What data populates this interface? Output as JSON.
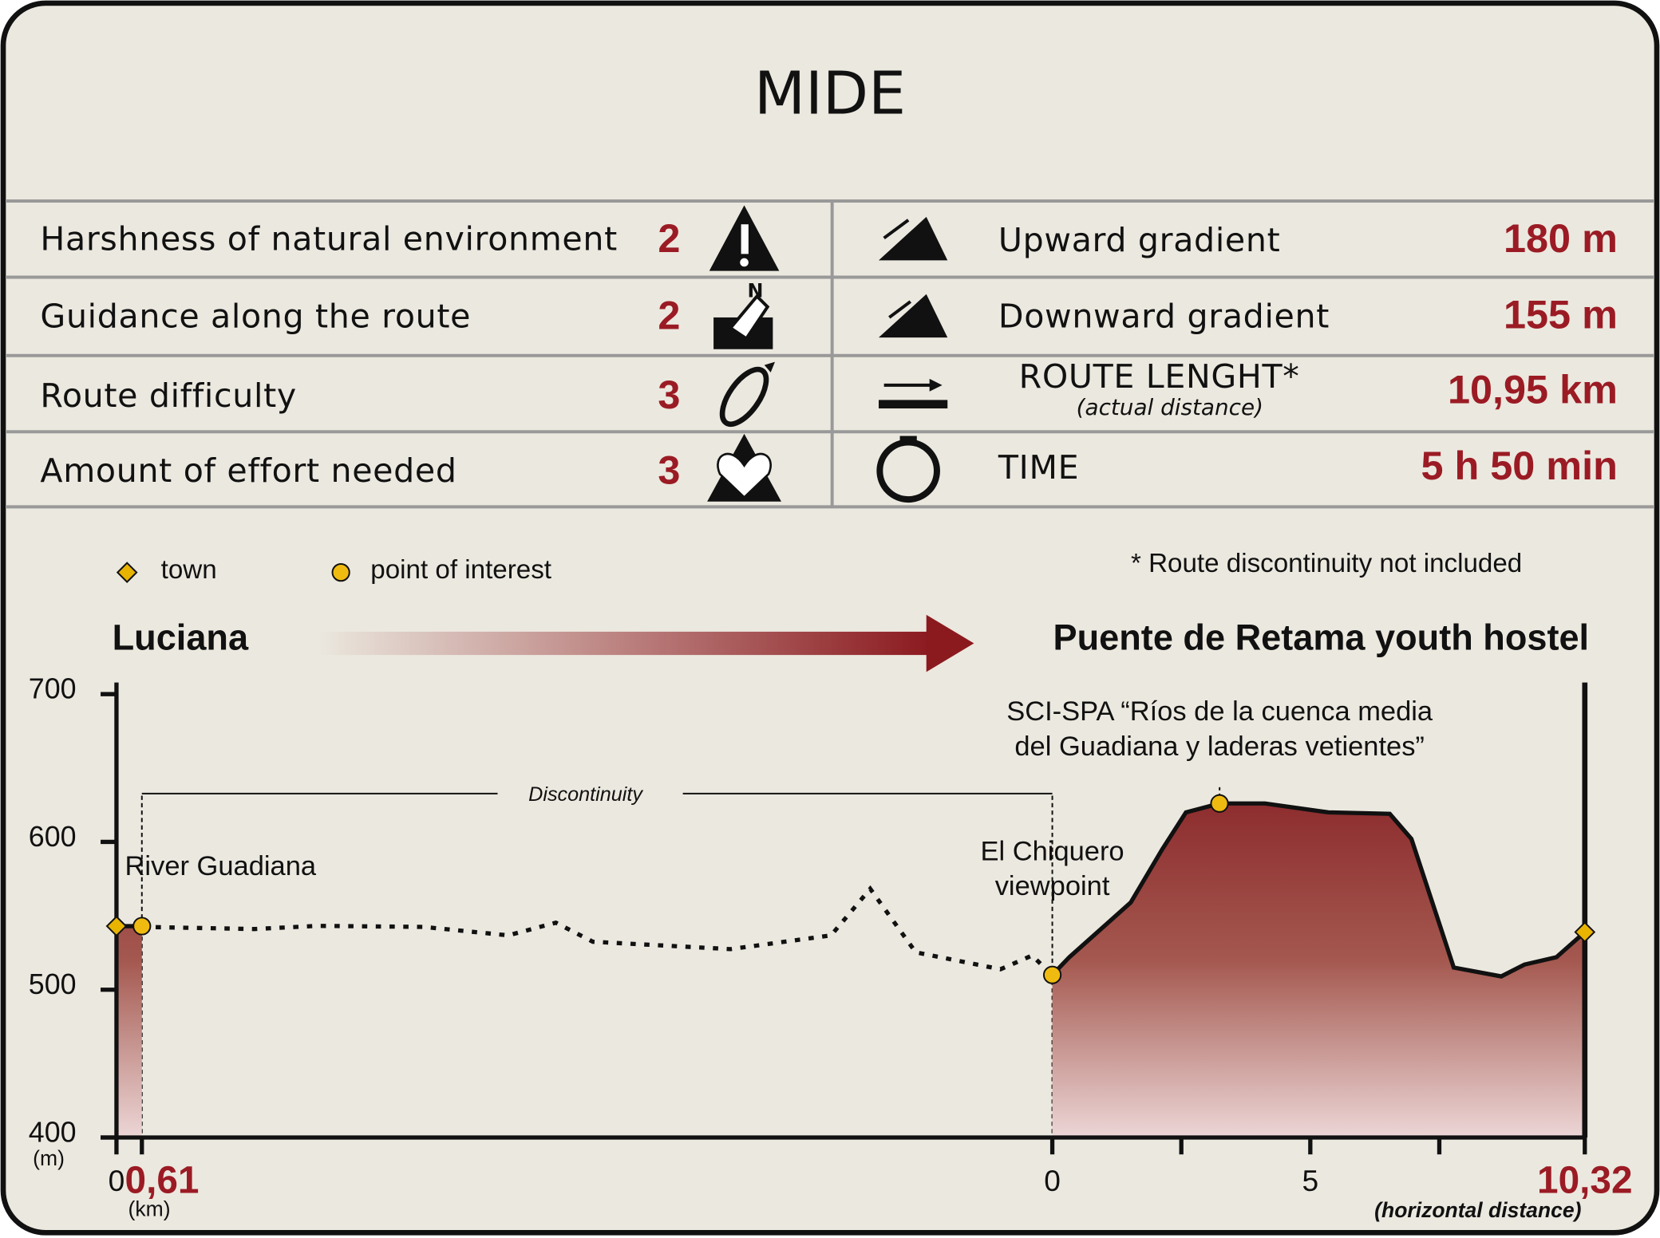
{
  "title": "MIDE",
  "mide": {
    "left": [
      {
        "label": "Harshness of natural environment",
        "value": 2
      },
      {
        "label": "Guidance along the route",
        "value": 2
      },
      {
        "label": "Route difficulty",
        "value": 3
      },
      {
        "label": "Amount of effort needed",
        "value": 3
      }
    ],
    "right": [
      {
        "label": "Upward gradient",
        "value": "180 m"
      },
      {
        "label": "Downward gradient",
        "value": "155 m"
      },
      {
        "label": "ROUTE LENGHT*",
        "note": "(actual distance)",
        "value": "10,95 km"
      },
      {
        "label": "TIME",
        "value": "5 h 50 min"
      }
    ]
  },
  "chart_data": {
    "type": "area",
    "start": "Luciana",
    "end": "Puente de Retama youth hostel",
    "note": "* Route discontinuity not included",
    "legend": [
      "town",
      "point of interest"
    ],
    "town_color": "#e8b400",
    "point_color": "#f0bb10",
    "color": "#8b1a1f",
    "ylabel": "(m)",
    "xlabel": "(km)",
    "xlabel2": "(horizontal distance)",
    "ylim": [
      400,
      700
    ],
    "yticks": [
      400,
      500,
      600,
      700
    ],
    "discontinuity_label": "Discontinuity",
    "annotations": [
      {
        "lines": [
          "River Guadiana"
        ]
      },
      {
        "lines": [
          "El Chiquero",
          "viewpoint"
        ]
      },
      {
        "lines": [
          "SCI-SPA “Ríos de la cuenca media",
          "del Guadiana y laderas vetientes”"
        ]
      }
    ],
    "segments": [
      {
        "xlim": [
          0,
          0.61
        ],
        "xticks": [
          0,
          {
            "value": 0.61,
            "label": "0,61"
          }
        ],
        "x": [
          0,
          0.61
        ],
        "values": [
          543,
          543
        ],
        "towns": [
          {
            "x": 0,
            "y": 543
          }
        ],
        "points_of_interest": [
          {
            "x": 0.61,
            "y": 543
          }
        ]
      },
      {
        "xlim": [
          0,
          10.32
        ],
        "xticks": [
          0,
          5,
          {
            "value": 10.32,
            "label": "10,32"
          }
        ],
        "minor_xticks": [
          2.5,
          7.5
        ],
        "x": [
          0,
          0.33,
          1.52,
          2.13,
          2.59,
          3.24,
          4.12,
          5.35,
          6.54,
          6.96,
          7.78,
          8.7,
          9.15,
          9.77,
          10.32
        ],
        "values": [
          510,
          522,
          559,
          595,
          620,
          626,
          626,
          620,
          619,
          602,
          515,
          509,
          517,
          522,
          539
        ],
        "towns": [
          {
            "x": 10.32,
            "y": 539
          }
        ],
        "points_of_interest": [
          {
            "x": 0,
            "y": 510
          },
          {
            "x": 3.24,
            "y": 626
          }
        ]
      }
    ]
  }
}
